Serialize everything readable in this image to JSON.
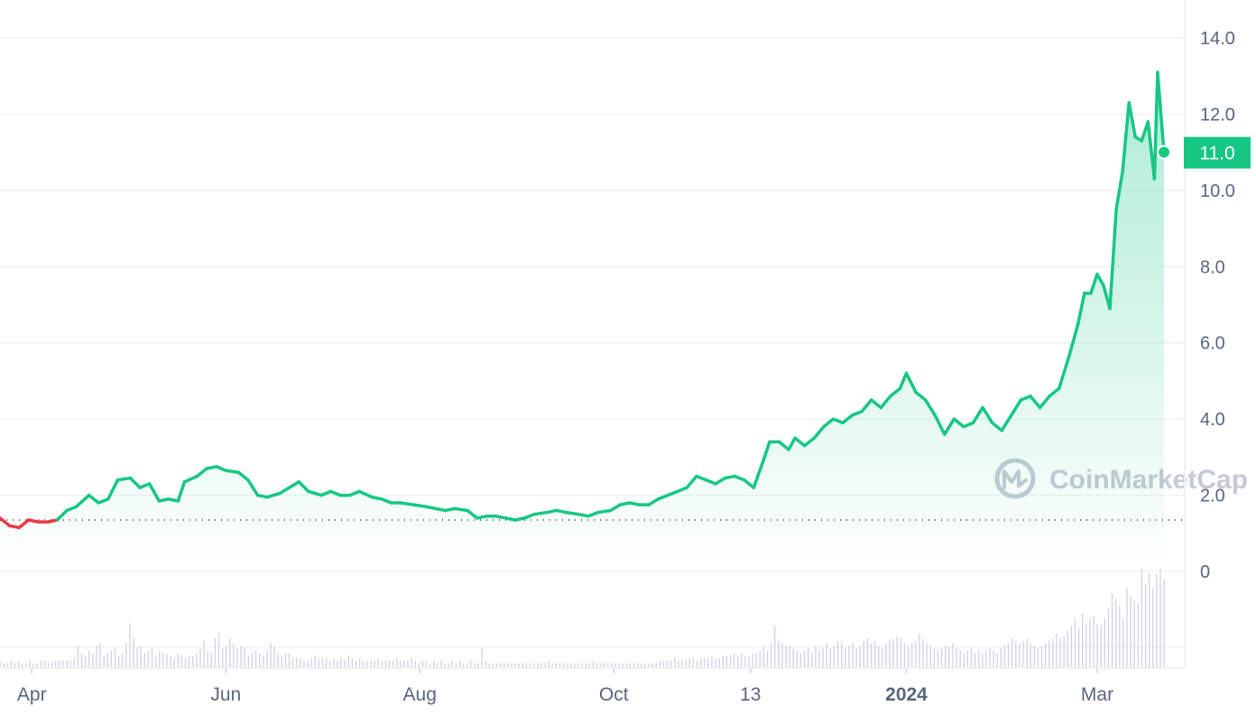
{
  "chart_data": {
    "type": "area",
    "y_ticks": [
      "14.0",
      "12.0",
      "10.0",
      "8.0",
      "6.0",
      "4.0",
      "2.0",
      "0"
    ],
    "ylim": [
      0,
      14
    ],
    "x_ticks": [
      {
        "label": "Apr",
        "bold": false,
        "day": 10
      },
      {
        "label": "Jun",
        "bold": false,
        "day": 71
      },
      {
        "label": "Aug",
        "bold": false,
        "day": 132
      },
      {
        "label": "Oct",
        "bold": false,
        "day": 193
      },
      {
        "label": "13",
        "bold": false,
        "day": 236
      },
      {
        "label": "2024",
        "bold": true,
        "day": 285
      },
      {
        "label": "Mar",
        "bold": false,
        "day": 345
      }
    ],
    "current_price_label": "11.0",
    "baseline_value": 1.35,
    "watermark": "CoinMarketCap",
    "colors": {
      "up": "#16c784",
      "down": "#ea3943",
      "fill": "#16c784",
      "grid": "#eff2f5",
      "axis_text": "#58667e",
      "volume": "#cfd6e4"
    },
    "series": [
      {
        "points": [
          [
            0,
            1.4
          ],
          [
            3,
            1.2
          ],
          [
            6,
            1.15
          ],
          [
            9,
            1.35
          ],
          [
            12,
            1.3
          ],
          [
            15,
            1.3
          ],
          [
            18,
            1.35
          ],
          [
            21,
            1.6
          ],
          [
            24,
            1.7
          ],
          [
            28,
            2.0
          ],
          [
            31,
            1.8
          ],
          [
            34,
            1.9
          ],
          [
            37,
            2.4
          ],
          [
            41,
            2.45
          ],
          [
            44,
            2.2
          ],
          [
            47,
            2.3
          ],
          [
            50,
            1.85
          ],
          [
            53,
            1.9
          ],
          [
            56,
            1.85
          ],
          [
            58,
            2.35
          ],
          [
            62,
            2.5
          ],
          [
            65,
            2.7
          ],
          [
            68,
            2.75
          ],
          [
            71,
            2.65
          ],
          [
            75,
            2.6
          ],
          [
            78,
            2.4
          ],
          [
            81,
            2.0
          ],
          [
            84,
            1.95
          ],
          [
            88,
            2.05
          ],
          [
            91,
            2.2
          ],
          [
            94,
            2.35
          ],
          [
            97,
            2.1
          ],
          [
            101,
            2.0
          ],
          [
            104,
            2.1
          ],
          [
            107,
            2.0
          ],
          [
            110,
            2.0
          ],
          [
            113,
            2.1
          ],
          [
            117,
            1.95
          ],
          [
            120,
            1.9
          ],
          [
            123,
            1.8
          ],
          [
            126,
            1.8
          ],
          [
            130,
            1.75
          ],
          [
            134,
            1.7
          ],
          [
            137,
            1.65
          ],
          [
            140,
            1.6
          ],
          [
            143,
            1.65
          ],
          [
            147,
            1.6
          ],
          [
            150,
            1.4
          ],
          [
            153,
            1.45
          ],
          [
            156,
            1.45
          ],
          [
            159,
            1.4
          ],
          [
            162,
            1.35
          ],
          [
            165,
            1.4
          ],
          [
            168,
            1.5
          ],
          [
            172,
            1.55
          ],
          [
            175,
            1.6
          ],
          [
            178,
            1.55
          ],
          [
            182,
            1.5
          ],
          [
            185,
            1.45
          ],
          [
            188,
            1.55
          ],
          [
            192,
            1.6
          ],
          [
            195,
            1.75
          ],
          [
            198,
            1.8
          ],
          [
            201,
            1.75
          ],
          [
            204,
            1.75
          ],
          [
            207,
            1.9
          ],
          [
            210,
            2.0
          ],
          [
            213,
            2.1
          ],
          [
            216,
            2.2
          ],
          [
            219,
            2.5
          ],
          [
            222,
            2.4
          ],
          [
            225,
            2.3
          ],
          [
            228,
            2.45
          ],
          [
            231,
            2.5
          ],
          [
            234,
            2.4
          ],
          [
            237,
            2.2
          ],
          [
            240,
            2.9
          ],
          [
            242,
            3.4
          ],
          [
            245,
            3.4
          ],
          [
            248,
            3.2
          ],
          [
            250,
            3.5
          ],
          [
            253,
            3.3
          ],
          [
            256,
            3.5
          ],
          [
            259,
            3.8
          ],
          [
            262,
            4.0
          ],
          [
            265,
            3.9
          ],
          [
            268,
            4.1
          ],
          [
            271,
            4.2
          ],
          [
            274,
            4.5
          ],
          [
            277,
            4.3
          ],
          [
            280,
            4.6
          ],
          [
            283,
            4.8
          ],
          [
            285,
            5.2
          ],
          [
            288,
            4.7
          ],
          [
            291,
            4.5
          ],
          [
            294,
            4.1
          ],
          [
            297,
            3.6
          ],
          [
            300,
            4.0
          ],
          [
            303,
            3.8
          ],
          [
            306,
            3.9
          ],
          [
            309,
            4.3
          ],
          [
            312,
            3.9
          ],
          [
            315,
            3.7
          ],
          [
            318,
            4.1
          ],
          [
            321,
            4.5
          ],
          [
            324,
            4.6
          ],
          [
            327,
            4.3
          ],
          [
            330,
            4.6
          ],
          [
            333,
            4.8
          ],
          [
            336,
            5.6
          ],
          [
            339,
            6.5
          ],
          [
            341,
            7.3
          ],
          [
            343,
            7.3
          ],
          [
            345,
            7.8
          ],
          [
            347,
            7.5
          ],
          [
            349,
            6.9
          ],
          [
            351,
            9.5
          ],
          [
            353,
            10.5
          ],
          [
            355,
            12.3
          ],
          [
            357,
            11.4
          ],
          [
            359,
            11.3
          ],
          [
            361,
            11.8
          ],
          [
            363,
            10.3
          ],
          [
            364,
            13.1
          ],
          [
            366,
            11.0
          ]
        ]
      }
    ],
    "volume": [
      3,
      2,
      2,
      3,
      2,
      3,
      2,
      2,
      3,
      2,
      2,
      3,
      3,
      2,
      2,
      3,
      3,
      3,
      3,
      3,
      4,
      9,
      6,
      5,
      7,
      6,
      9,
      10,
      5,
      6,
      7,
      8,
      5,
      6,
      10,
      18,
      12,
      8,
      9,
      6,
      7,
      8,
      5,
      7,
      6,
      6,
      5,
      4,
      6,
      5,
      4,
      5,
      5,
      6,
      8,
      11,
      7,
      6,
      12,
      14,
      8,
      9,
      12,
      10,
      8,
      9,
      8,
      5,
      6,
      7,
      6,
      5,
      7,
      10,
      9,
      6,
      5,
      6,
      6,
      4,
      4,
      4,
      3,
      3,
      4,
      5,
      4,
      4,
      4,
      3,
      4,
      3,
      4,
      3,
      5,
      4,
      3,
      4,
      3,
      3,
      3,
      3,
      4,
      3,
      3,
      3,
      3,
      4,
      3,
      3,
      3,
      4,
      3,
      2,
      3,
      3,
      2,
      3,
      2,
      3,
      2,
      2,
      3,
      2,
      3,
      2,
      2,
      3,
      2,
      2,
      8,
      3,
      2,
      2,
      2,
      2,
      2,
      2,
      2,
      2,
      2,
      2,
      2,
      2,
      2,
      2,
      2,
      2,
      3,
      2,
      2,
      2,
      2,
      2,
      2,
      2,
      2,
      2,
      2,
      2,
      3,
      2,
      2,
      2,
      2,
      2,
      2,
      2,
      2,
      2,
      2,
      2,
      2,
      2,
      2,
      2,
      2,
      2,
      3,
      3,
      3,
      3,
      4,
      3,
      3,
      3,
      4,
      4,
      3,
      4,
      4,
      4,
      5,
      4,
      4,
      5,
      5,
      5,
      6,
      5,
      6,
      5,
      5,
      6,
      6,
      7,
      9,
      7,
      10,
      17,
      11,
      10,
      9,
      9,
      8,
      7,
      6,
      7,
      8,
      6,
      9,
      7,
      8,
      10,
      8,
      9,
      11,
      10,
      8,
      9,
      10,
      8,
      9,
      11,
      12,
      10,
      11,
      9,
      8,
      10,
      11,
      12,
      13,
      12,
      10,
      9,
      10,
      11,
      14,
      12,
      10,
      9,
      8,
      7,
      8,
      9,
      8,
      10,
      8,
      7,
      6,
      7,
      8,
      6,
      7,
      6,
      7,
      8,
      7,
      6,
      8,
      9,
      10,
      12,
      11,
      10,
      11,
      12,
      10,
      9,
      8,
      9,
      10,
      11,
      12,
      14,
      12,
      13,
      15,
      17,
      20,
      16,
      22,
      18,
      20,
      21,
      18,
      17,
      20,
      24,
      30,
      28,
      25,
      20,
      32,
      29,
      27,
      26,
      40,
      34,
      38,
      32,
      38,
      40,
      36
    ]
  }
}
